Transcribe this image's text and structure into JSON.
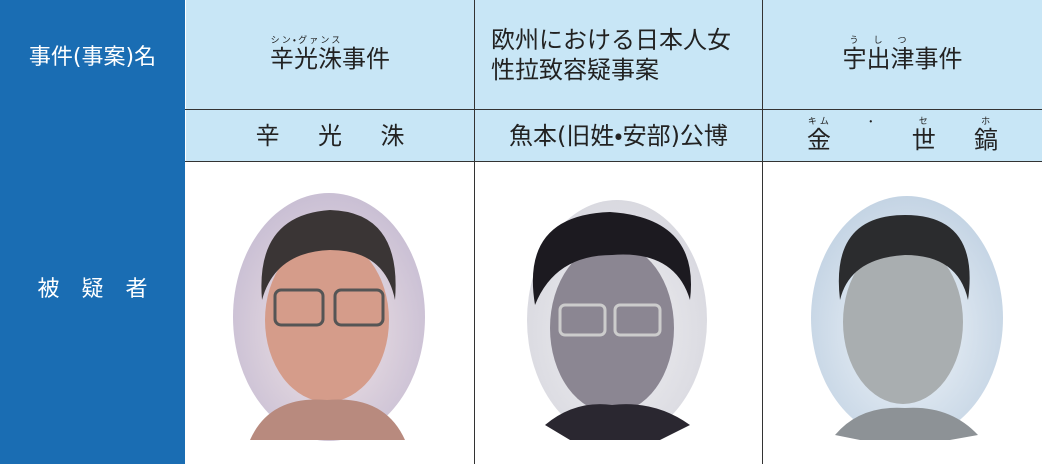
{
  "header": {
    "label": "事件(事案)名"
  },
  "cases": [
    {
      "parts": [
        {
          "text": "辛光洙",
          "ruby": "シン・グァンス"
        },
        {
          "text": "事件"
        }
      ]
    },
    {
      "parts": [
        {
          "text": "欧州における日本人女性拉致容疑事案"
        }
      ]
    },
    {
      "parts": [
        {
          "text": "宇",
          "ruby": "う"
        },
        {
          "text": "出",
          "ruby": "し"
        },
        {
          "text": "津",
          "ruby": "つ"
        },
        {
          "text": "事件"
        }
      ]
    }
  ],
  "suspect_label": "被　疑　者",
  "suspects": [
    {
      "parts": [
        {
          "text": "辛"
        },
        {
          "text": "光"
        },
        {
          "text": "洙"
        }
      ]
    },
    {
      "parts": [
        {
          "text": "魚本(旧姓・安部)公博"
        }
      ]
    },
    {
      "parts": [
        {
          "text": "金",
          "ruby": "キム"
        },
        {
          "text": "",
          "ruby": "・"
        },
        {
          "text": "世",
          "ruby": "セ"
        },
        {
          "text": "鎬",
          "ruby": "ホ"
        }
      ]
    }
  ]
}
